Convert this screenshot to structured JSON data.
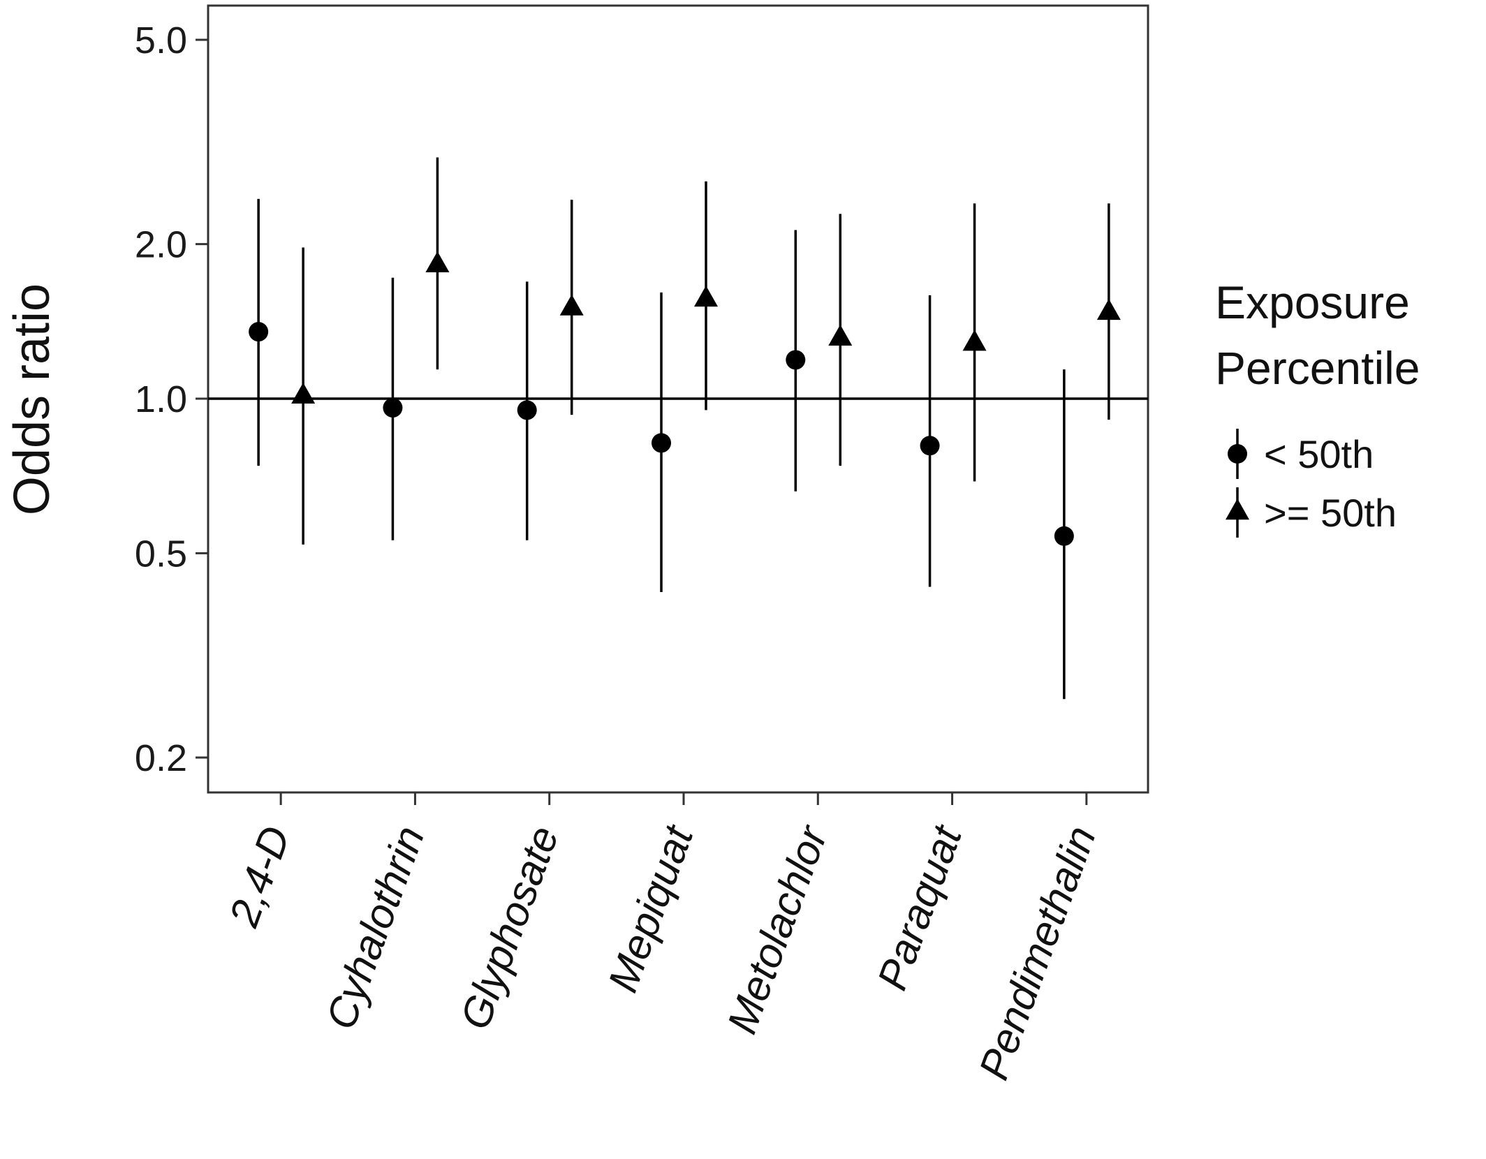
{
  "chart_data": {
    "type": "scatter",
    "ylabel": "Odds ratio",
    "y_scale": "log",
    "ylim": [
      0.17,
      6.0
    ],
    "y_ticks": [
      0.2,
      0.5,
      1.0,
      2.0,
      5.0
    ],
    "y_tick_labels": [
      "0.2",
      "0.5",
      "1.0",
      "2.0",
      "5.0"
    ],
    "reference_line": 1.0,
    "categories": [
      "2,4-D",
      "Cyhalothrin",
      "Glyphosate",
      "Mepiquat",
      "Metolachlor",
      "Paraquat",
      "Pendimethalin"
    ],
    "legend": {
      "title_lines": [
        "Exposure",
        "Percentile"
      ],
      "placement": "right"
    },
    "series": [
      {
        "name": "< 50th",
        "marker": "circle",
        "estimate": [
          1.35,
          0.96,
          0.95,
          0.82,
          1.19,
          0.81,
          0.54
        ],
        "lower": [
          0.74,
          0.53,
          0.53,
          0.42,
          0.66,
          0.43,
          0.26
        ],
        "upper": [
          2.45,
          1.72,
          1.69,
          1.61,
          2.13,
          1.59,
          1.14
        ]
      },
      {
        "name": ">= 50th",
        "marker": "triangle",
        "estimate": [
          1.01,
          1.82,
          1.5,
          1.56,
          1.31,
          1.28,
          1.47
        ],
        "lower": [
          0.52,
          1.14,
          0.93,
          0.95,
          0.74,
          0.69,
          0.91
        ],
        "upper": [
          1.97,
          2.95,
          2.44,
          2.65,
          2.29,
          2.4,
          2.4
        ]
      }
    ],
    "colors": {
      "marks": "#000000",
      "axis": "#333333"
    }
  }
}
